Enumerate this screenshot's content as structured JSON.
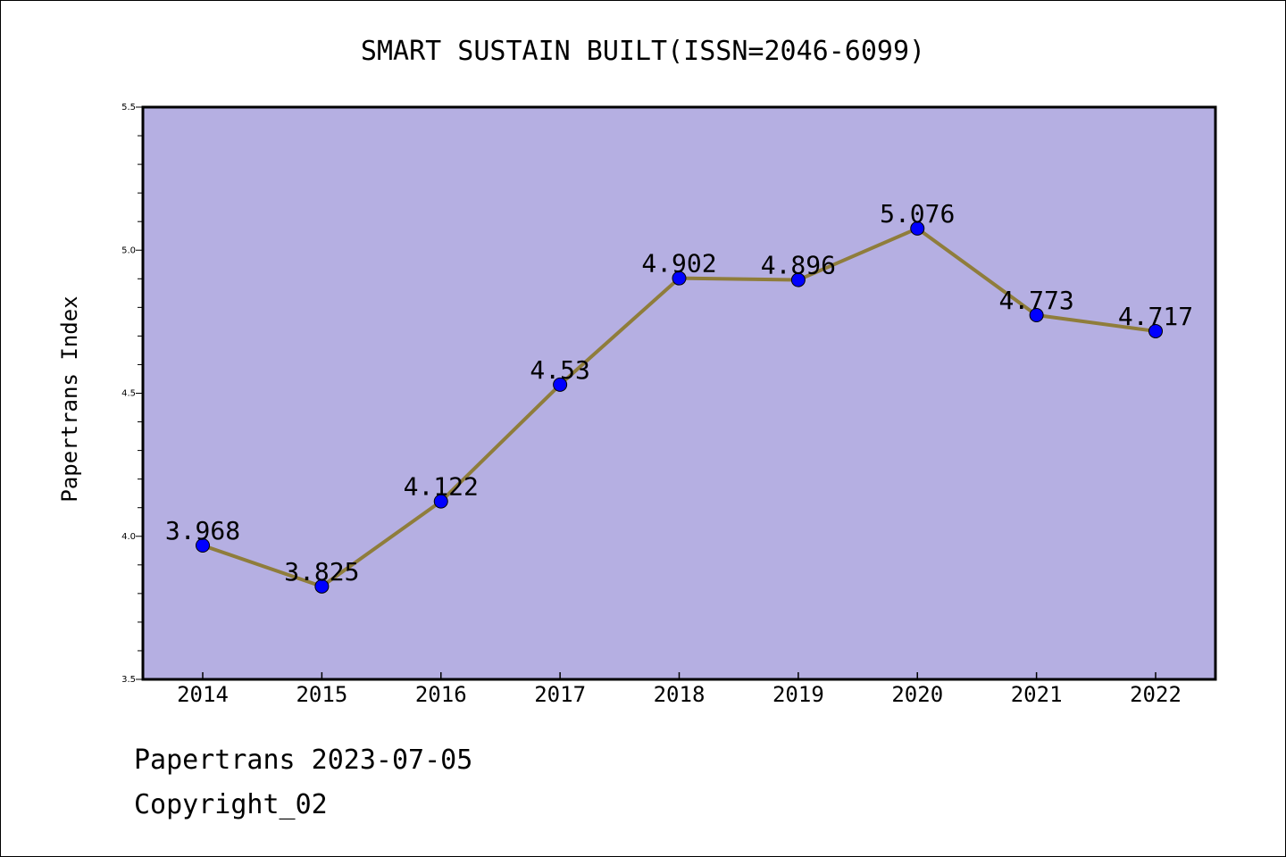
{
  "chart_data": {
    "type": "line",
    "title": "SMART SUSTAIN BUILT(ISSN=2046-6099)",
    "xlabel": "",
    "ylabel": "Papertrans Index",
    "categories": [
      "2014",
      "2015",
      "2016",
      "2017",
      "2018",
      "2019",
      "2020",
      "2021",
      "2022"
    ],
    "series": [
      {
        "values": [
          3.968,
          3.825,
          4.122,
          4.53,
          4.902,
          4.896,
          5.076,
          4.773,
          4.717
        ],
        "data_labels": [
          "3.968",
          "3.825",
          "4.122",
          "4.53",
          "4.902",
          "4.896",
          "5.076",
          "4.773",
          "4.717"
        ]
      }
    ],
    "ylim": [
      3.5,
      5.5
    ],
    "yticks": [
      3.5,
      4.0,
      4.5,
      5.0,
      5.5
    ],
    "ytick_labels": [
      "3.5",
      "4.0",
      "4.5",
      "5.0",
      "5.5"
    ],
    "grid": false,
    "legend": "none",
    "colors": {
      "plot_background": "#b5afe2",
      "line": "#8f7d3b",
      "marker": "#0000ff",
      "axis": "#000000"
    }
  },
  "footer": {
    "line1": "Papertrans 2023-07-05",
    "line2": "Copyright_02"
  }
}
